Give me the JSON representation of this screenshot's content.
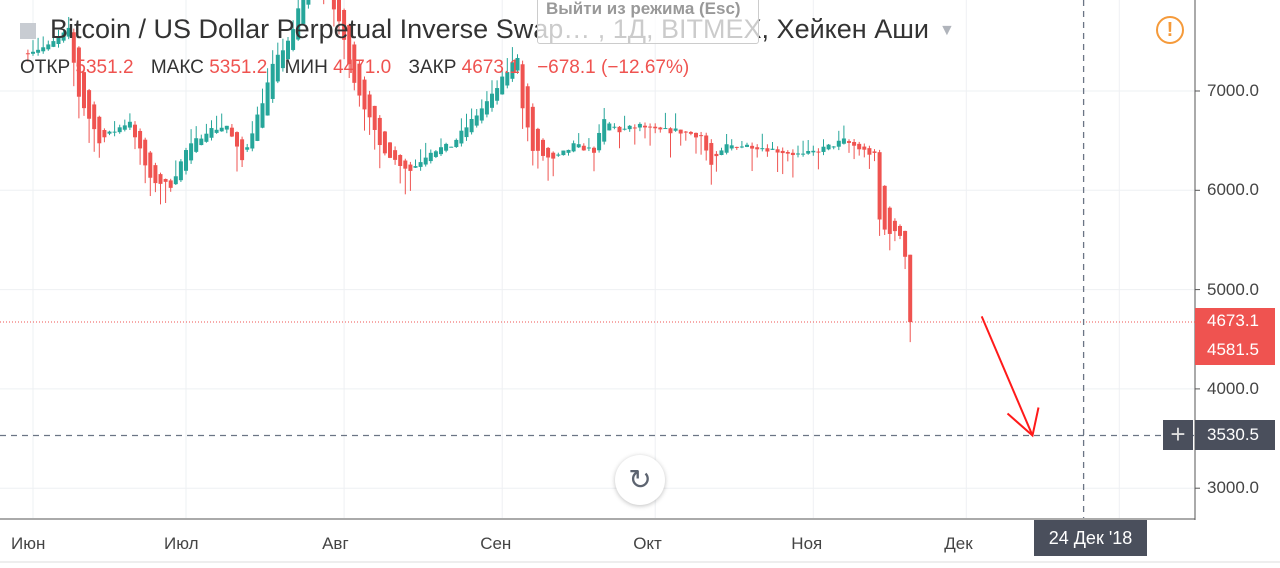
{
  "header": {
    "title": "Bitcoin / US Dollar Perpetual Inverse Swap… , 1Д, BITMEX, Хейкен Аши"
  },
  "ohlc": {
    "open_label": "ОТКР",
    "open": "5351.2",
    "high_label": "МАКС",
    "high": "5351.2",
    "low_label": "МИН",
    "low": "4471.0",
    "close_label": "ЗАКР",
    "close": "4673.1",
    "change": "−678.1 (−12.67%)"
  },
  "tooltip": {
    "text": "Выйти из режима (Esc)"
  },
  "icons": {
    "alert": "alert-circle-icon",
    "replay": "replay-icon",
    "crosshair": "plus-icon"
  },
  "colors": {
    "up": "#26a69a",
    "down": "#ef5350",
    "crosshair": "#4a4f5c",
    "alert": "#f59a3a"
  },
  "price_labels": {
    "last": "4673.1",
    "second": "4581.5",
    "crosshair": "3530.5",
    "crosshair_date": "24 Дек '18"
  },
  "chart_data": {
    "type": "candlestick",
    "style": "Heikin Ashi",
    "interval": "1D",
    "ylim": [
      2700,
      8200
    ],
    "yticks": [
      "7000.0",
      "6000.0",
      "5000.0",
      "4000.0",
      "3000.0"
    ],
    "xticks": [
      {
        "label": "Июн",
        "date": "2018-06-01"
      },
      {
        "label": "Июл",
        "date": "2018-07-01"
      },
      {
        "label": "Авг",
        "date": "2018-08-01"
      },
      {
        "label": "Сен",
        "date": "2018-09-01"
      },
      {
        "label": "Окт",
        "date": "2018-10-01"
      },
      {
        "label": "Ноя",
        "date": "2018-11-01"
      },
      {
        "label": "Дек",
        "date": "2018-12-01"
      }
    ],
    "grid": true,
    "close_anchors": [
      [
        "2018-05-31",
        7400
      ],
      [
        "2018-06-04",
        7450
      ],
      [
        "2018-06-08",
        7610
      ],
      [
        "2018-06-10",
        6950
      ],
      [
        "2018-06-14",
        6500
      ],
      [
        "2018-06-20",
        6700
      ],
      [
        "2018-06-24",
        6100
      ],
      [
        "2018-06-28",
        6050
      ],
      [
        "2018-07-01",
        6400
      ],
      [
        "2018-07-05",
        6600
      ],
      [
        "2018-07-09",
        6650
      ],
      [
        "2018-07-12",
        6300
      ],
      [
        "2018-07-16",
        6900
      ],
      [
        "2018-07-18",
        7250
      ],
      [
        "2018-07-22",
        7600
      ],
      [
        "2018-07-24",
        8050
      ],
      [
        "2018-07-27",
        8200
      ],
      [
        "2018-07-31",
        7700
      ],
      [
        "2018-08-03",
        7100
      ],
      [
        "2018-08-08",
        6450
      ],
      [
        "2018-08-11",
        6300
      ],
      [
        "2018-08-14",
        6200
      ],
      [
        "2018-08-18",
        6400
      ],
      [
        "2018-08-22",
        6450
      ],
      [
        "2018-08-26",
        6700
      ],
      [
        "2018-08-30",
        6950
      ],
      [
        "2018-09-02",
        7200
      ],
      [
        "2018-09-04",
        7350
      ],
      [
        "2018-09-05",
        6850
      ],
      [
        "2018-09-07",
        6400
      ],
      [
        "2018-09-11",
        6300
      ],
      [
        "2018-09-15",
        6450
      ],
      [
        "2018-09-19",
        6400
      ],
      [
        "2018-09-21",
        6700
      ],
      [
        "2018-09-24",
        6600
      ],
      [
        "2018-09-28",
        6650
      ],
      [
        "2018-10-01",
        6600
      ],
      [
        "2018-10-05",
        6600
      ],
      [
        "2018-10-10",
        6550
      ],
      [
        "2018-10-12",
        6250
      ],
      [
        "2018-10-15",
        6450
      ],
      [
        "2018-10-20",
        6450
      ],
      [
        "2018-10-25",
        6400
      ],
      [
        "2018-10-30",
        6350
      ],
      [
        "2018-11-03",
        6420
      ],
      [
        "2018-11-07",
        6500
      ],
      [
        "2018-11-10",
        6420
      ],
      [
        "2018-11-13",
        6350
      ],
      [
        "2018-11-14",
        5700
      ],
      [
        "2018-11-15",
        5600
      ],
      [
        "2018-11-18",
        5550
      ],
      [
        "2018-11-19",
        5351.2
      ]
    ],
    "last_candle": {
      "date": "2018-11-20",
      "open": 5351.2,
      "high": 5351.2,
      "low": 4471.0,
      "close": 4673.1
    },
    "crosshair": {
      "price": 3530.5,
      "date": "2018-12-24"
    },
    "annotation": {
      "type": "arrow",
      "color": "#ff1a1a",
      "from": {
        "date": "2018-12-05",
        "price": 4700
      },
      "to": {
        "date": "2018-12-13",
        "price": 3530.5
      }
    }
  }
}
